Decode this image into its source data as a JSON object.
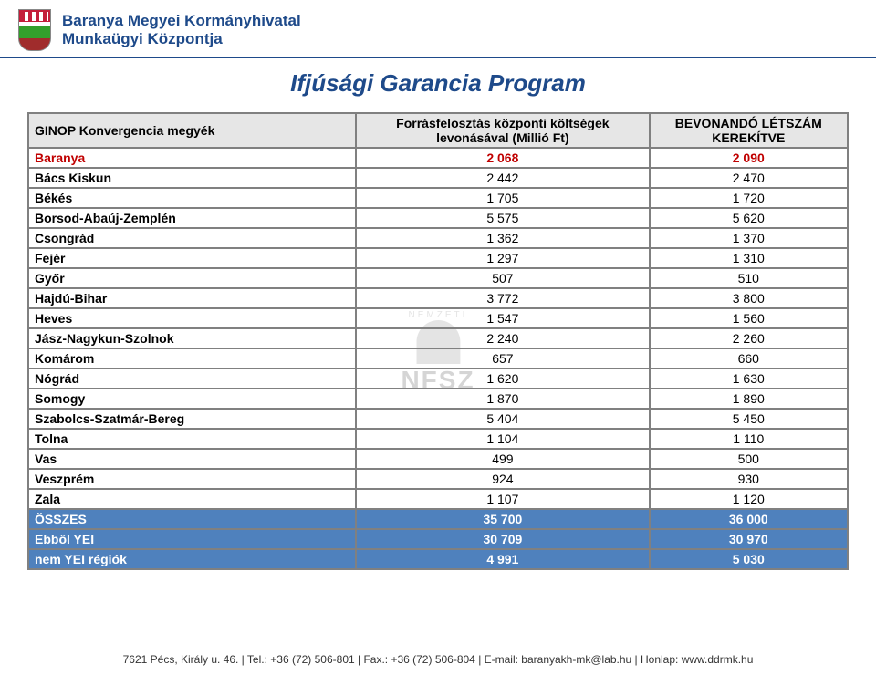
{
  "header": {
    "org_line1": "Baranya Megyei Kormányhivatal",
    "org_line2": "Munkaügyi Központja",
    "org_color": "#1e4a8a",
    "org_fontsize": 17
  },
  "title": {
    "text": "Ifjúsági Garancia Program",
    "color": "#1e4a8a",
    "fontsize": 26
  },
  "table": {
    "columns": [
      "GINOP Konvergencia  megyék",
      "Forrásfelosztás központi költségek levonásával (Millió Ft)",
      "BEVONANDÓ LÉTSZÁM KEREKÍTVE"
    ],
    "header_fontsize": 14,
    "header_bg": "#e6e6e6",
    "row_fontsize": 14,
    "highlight_rows": [
      "Baranya",
      "ÖSSZES",
      "Ebből YEI",
      "nem YEI régiók"
    ],
    "first_row_color": "#c00000",
    "highlight_bg": "#4f81bd",
    "highlight_text": "#ffffff",
    "rows": [
      [
        "Baranya",
        "2 068",
        "2 090"
      ],
      [
        "Bács Kiskun",
        "2 442",
        "2 470"
      ],
      [
        "Békés",
        "1 705",
        "1 720"
      ],
      [
        "Borsod-Abaúj-Zemplén",
        "5 575",
        "5 620"
      ],
      [
        "Csongrád",
        "1 362",
        "1 370"
      ],
      [
        "Fejér",
        "1 297",
        "1 310"
      ],
      [
        "Győr",
        "507",
        "510"
      ],
      [
        "Hajdú-Bihar",
        "3 772",
        "3 800"
      ],
      [
        "Heves",
        "1 547",
        "1 560"
      ],
      [
        "Jász-Nagykun-Szolnok",
        "2 240",
        "2 260"
      ],
      [
        "Komárom",
        "657",
        "660"
      ],
      [
        "Nógrád",
        "1 620",
        "1 630"
      ],
      [
        "Somogy",
        "1 870",
        "1 890"
      ],
      [
        "Szabolcs-Szatmár-Bereg",
        "5 404",
        "5 450"
      ],
      [
        "Tolna",
        "1 104",
        "1 110"
      ],
      [
        "Vas",
        "499",
        "500"
      ],
      [
        "Veszprém",
        "924",
        "930"
      ],
      [
        "Zala",
        "1 107",
        "1 120"
      ],
      [
        "ÖSSZES",
        "35 700",
        "36 000"
      ],
      [
        "Ebből YEI",
        "30 709",
        "30 970"
      ],
      [
        "nem YEI régiók",
        "4 991",
        "5 030"
      ]
    ]
  },
  "watermark": {
    "text": "NFSZ",
    "upper": "NEMZETI",
    "color": "#888888"
  },
  "footer": {
    "text": "7621 Pécs, Király u. 46. | Tel.: +36 (72) 506-801 | Fax.: +36 (72) 506-804 | E-mail: baranyakh-mk@lab.hu | Honlap: www.ddrmk.hu",
    "fontsize": 12
  }
}
